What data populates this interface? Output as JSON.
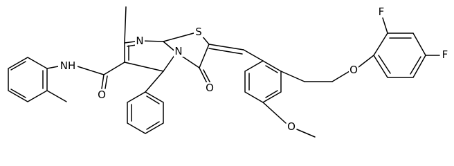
{
  "atoms": [
    {
      "label": "N"
    },
    {
      "label": "S"
    },
    {
      "label": "N"
    },
    {
      "label": "O"
    },
    {
      "label": "NH"
    },
    {
      "label": "O"
    },
    {
      "label": "O"
    },
    {
      "label": "O"
    },
    {
      "label": "F"
    },
    {
      "label": "F"
    }
  ]
}
